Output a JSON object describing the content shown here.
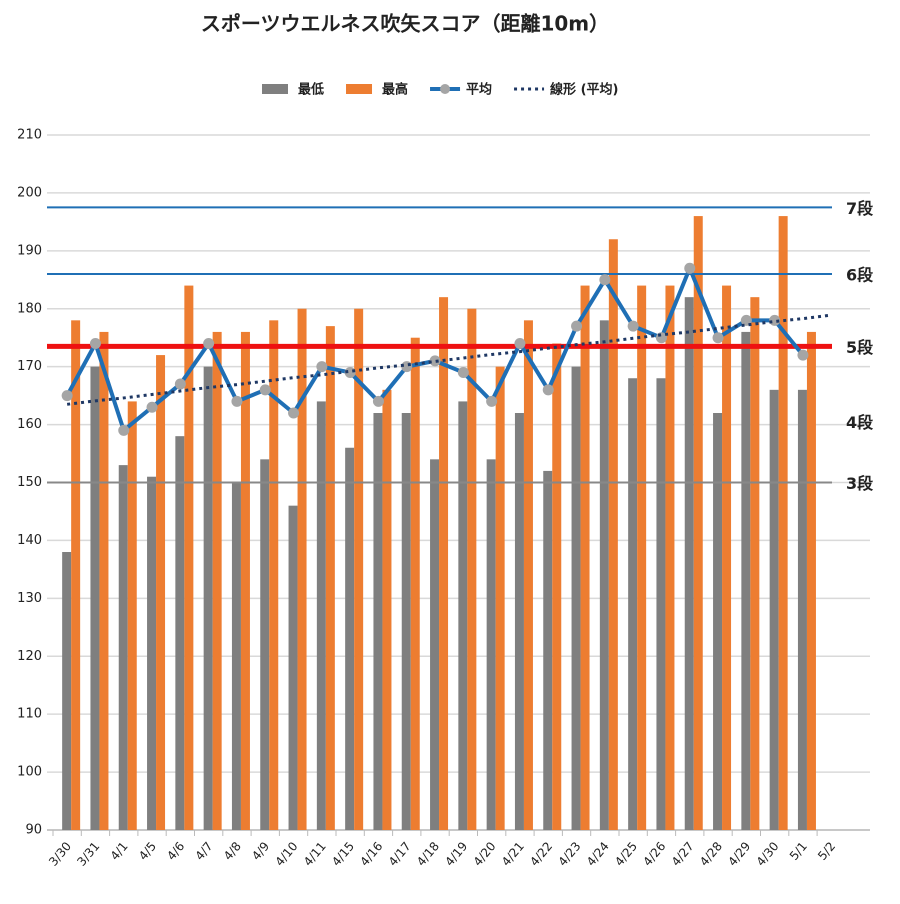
{
  "chart_data": {
    "type": "bar",
    "title": "スポーツウエルネス吹矢スコア（距離10m）",
    "categories": [
      "3/30",
      "3/31",
      "4/1",
      "4/5",
      "4/6",
      "4/7",
      "4/8",
      "4/9",
      "4/10",
      "4/11",
      "4/15",
      "4/16",
      "4/17",
      "4/18",
      "4/19",
      "4/20",
      "4/21",
      "4/22",
      "4/23",
      "4/24",
      "4/25",
      "4/26",
      "4/27",
      "4/28",
      "4/29",
      "4/30",
      "5/1",
      "5/2"
    ],
    "series": [
      {
        "name": "最低",
        "kind": "bar",
        "color": "#7f7f7f",
        "values": [
          138,
          170,
          153,
          151,
          158,
          170,
          150,
          154,
          146,
          164,
          156,
          162,
          162,
          154,
          164,
          154,
          162,
          152,
          170,
          178,
          168,
          168,
          182,
          162,
          176,
          166,
          166,
          null
        ]
      },
      {
        "name": "最高",
        "kind": "bar",
        "color": "#ed7d31",
        "values": [
          178,
          176,
          164,
          172,
          184,
          176,
          176,
          178,
          180,
          177,
          180,
          166,
          175,
          182,
          180,
          170,
          178,
          174,
          184,
          192,
          184,
          184,
          196,
          184,
          182,
          196,
          176,
          null
        ]
      },
      {
        "name": "平均",
        "kind": "line",
        "color": "#1f6fb5",
        "marker_color": "#a5a5a5",
        "values": [
          165,
          174,
          159,
          163,
          167,
          174,
          164,
          166,
          162,
          170,
          169,
          164,
          170,
          171,
          169,
          164,
          174,
          166,
          177,
          185,
          177,
          175,
          187,
          175,
          178,
          178,
          172,
          null
        ]
      },
      {
        "name": "線形 (平均)",
        "kind": "trend",
        "color": "#1f3864",
        "values": [
          163.5,
          164.1,
          164.6,
          165.2,
          165.8,
          166.4,
          166.9,
          167.5,
          168.1,
          168.6,
          169.2,
          169.8,
          170.3,
          170.9,
          171.5,
          172.1,
          172.6,
          173.2,
          173.8,
          174.3,
          174.9,
          175.5,
          176.0,
          176.6,
          177.2,
          177.8,
          178.3,
          178.9
        ]
      }
    ],
    "reference_lines": [
      {
        "label": "7段",
        "value": 197.5,
        "color": "#1f6fb5",
        "label_color": "#111",
        "width": 2,
        "line": true
      },
      {
        "label": "6段",
        "value": 186,
        "color": "#1f6fb5",
        "label_color": "#111",
        "width": 2,
        "line": true
      },
      {
        "label": "5段",
        "value": 173.5,
        "color": "#ee1111",
        "label_color": "#1f6fb5",
        "width": 5,
        "line": true
      },
      {
        "label": "4段",
        "value": 160.5,
        "color": "#888",
        "label_color": "#111",
        "width": 0,
        "line": false
      },
      {
        "label": "3段",
        "value": 150,
        "color": "#888",
        "label_color": "#111",
        "width": 2,
        "line": true
      }
    ],
    "ylim": [
      90,
      210
    ],
    "yticks": [
      90,
      100,
      110,
      120,
      130,
      140,
      150,
      160,
      170,
      180,
      190,
      200,
      210
    ],
    "grid": true,
    "legend": "top"
  }
}
